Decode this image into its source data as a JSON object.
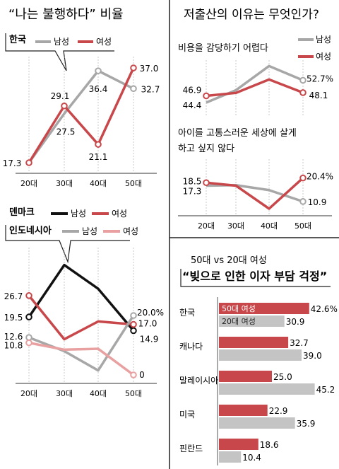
{
  "colors": {
    "male": "#a7a7a7",
    "female": "#c8474a",
    "female_light": "#e8a0a0",
    "denmark_male": "#111111",
    "bar_gray": "#c4c4c4",
    "bar_red": "#c8474a",
    "axis": "#333333"
  },
  "panel_unhappy": {
    "title": "“나는 불행하다” 비율",
    "korea_label": "한국",
    "male_label": "남성",
    "female_label": "여성",
    "denmark_label": "덴마크",
    "indonesia_label": "인도네시아"
  },
  "panel_reasons": {
    "title": "저출산의 이유는 무엇인가?",
    "male_label": "남성",
    "female_label": "여성",
    "sub1": "비용을 감당하기 어렵다",
    "sub2_line1": "아이를 고통스러운 세상에 살게",
    "sub2_line2": "하고 싶지 않다"
  },
  "panel_debt": {
    "header": "50대 vs 20대 여성",
    "title": "“빚으로 인한 이자 부담 걱정”",
    "legend_50": "50대 여성",
    "legend_20": "20대 여성"
  },
  "chart_data": [
    {
      "id": "korea_unhappy",
      "type": "line",
      "categories": [
        "20대",
        "30대",
        "40대",
        "50대"
      ],
      "series": [
        {
          "name": "남성",
          "values": [
            17.3,
            27.5,
            36.4,
            32.7
          ],
          "labels": [
            "",
            "27.5",
            "36.4",
            "32.7"
          ]
        },
        {
          "name": "여성",
          "values": [
            17.3,
            29.1,
            21.1,
            37.0
          ],
          "labels": [
            "17.3",
            "29.1",
            "21.1",
            "37.0"
          ]
        }
      ]
    },
    {
      "id": "denmark_indonesia_unhappy",
      "type": "line",
      "categories": [
        "20대",
        "30대",
        "40대",
        "50대"
      ],
      "series": [
        {
          "name": "덴마크 남성",
          "values": [
            19.5,
            37.0,
            29.0,
            14.9
          ],
          "labels": [
            "19.5",
            "",
            "",
            "14.9"
          ]
        },
        {
          "name": "덴마크 여성",
          "values": [
            26.7,
            12.0,
            18.0,
            17.0
          ],
          "labels": [
            "26.7",
            "",
            "",
            "17.0"
          ]
        },
        {
          "name": "인도네시아 남성",
          "values": [
            12.6,
            8.0,
            1.5,
            20.0
          ],
          "labels": [
            "12.6",
            "",
            "",
            "20.0%"
          ]
        },
        {
          "name": "인도네시아 여성",
          "values": [
            10.8,
            8.5,
            8.8,
            0
          ],
          "labels": [
            "10.8",
            "",
            "",
            "0"
          ]
        }
      ]
    },
    {
      "id": "reason_cost",
      "type": "line",
      "title": "비용을 감당하기 어렵다",
      "categories": [
        "20대",
        "30대",
        "40대",
        "50대"
      ],
      "series": [
        {
          "name": "남성",
          "values": [
            44.4,
            49.0,
            58.0,
            52.7
          ],
          "labels": [
            "44.4",
            "",
            "",
            "52.7%"
          ]
        },
        {
          "name": "여성",
          "values": [
            46.9,
            48.0,
            53.0,
            48.1
          ],
          "labels": [
            "46.9",
            "",
            "",
            "48.1"
          ]
        }
      ]
    },
    {
      "id": "reason_world",
      "type": "line",
      "title": "아이를 고통스러운 세상에 살게 하고 싶지 않다",
      "categories": [
        "20대",
        "30대",
        "40대",
        "50대"
      ],
      "series": [
        {
          "name": "남성",
          "values": [
            17.3,
            17.5,
            15.5,
            10.9
          ],
          "labels": [
            "17.3",
            "",
            "",
            "10.9"
          ]
        },
        {
          "name": "여성",
          "values": [
            18.5,
            17.3,
            8.0,
            20.4
          ],
          "labels": [
            "18.5",
            "",
            "",
            "20.4%"
          ]
        }
      ]
    },
    {
      "id": "debt_interest",
      "type": "bar",
      "title": "“빚으로 인한 이자 부담 걱정”",
      "categories": [
        "한국",
        "캐나다",
        "말레이시아",
        "미국",
        "핀란드"
      ],
      "series": [
        {
          "name": "50대 여성",
          "values": [
            42.6,
            32.7,
            25.0,
            22.9,
            18.6
          ],
          "labels": [
            "42.6%",
            "32.7",
            "25.0",
            "22.9",
            "18.6"
          ]
        },
        {
          "name": "20대 여성",
          "values": [
            30.9,
            39.0,
            45.2,
            35.9,
            10.4
          ],
          "labels": [
            "30.9",
            "39.0",
            "45.2",
            "35.9",
            "10.4"
          ]
        }
      ]
    }
  ]
}
